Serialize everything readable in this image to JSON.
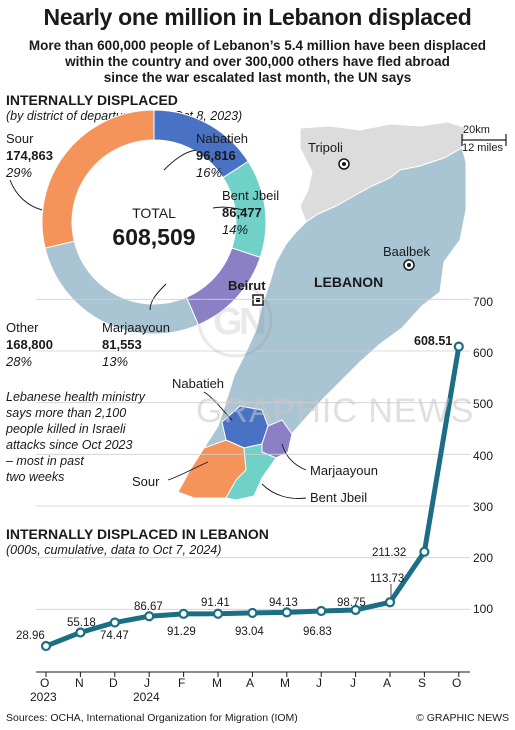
{
  "title": "Nearly one million in Lebanon displaced",
  "subtitle_lines": [
    "More than 600,000 people of Lebanon’s 5.4 million have been displaced",
    "within the country and over 300,000 others have fled abroad",
    "since the war escalated last month, the UN says"
  ],
  "donut": {
    "heading": "INTERNALLY DISPLACED",
    "note": "(by district of departure, since Oct 8, 2023)",
    "total_label": "TOTAL",
    "total_value": "608,509",
    "slices": [
      {
        "name": "Nabatieh",
        "value": "96,816",
        "pct": "16%",
        "num": 96816,
        "color": "#4a72c4"
      },
      {
        "name": "Bent Jbeil",
        "value": "86,477",
        "pct": "14%",
        "num": 86477,
        "color": "#6fd1c8"
      },
      {
        "name": "Marjaayoun",
        "value": "81,553",
        "pct": "13%",
        "num": 81553,
        "color": "#8b80c6"
      },
      {
        "name": "Other",
        "value": "168,800",
        "pct": "28%",
        "num": 168800,
        "color": "#a9c4d3"
      },
      {
        "name": "Sour",
        "value": "174,863",
        "pct": "29%",
        "num": 174863,
        "color": "#f4935a"
      }
    ]
  },
  "map": {
    "scale_km": "20km",
    "scale_miles": "12 miles",
    "places": {
      "tripoli": "Tripoli",
      "baalbek": "Baalbek",
      "beirut": "Beirut",
      "country": "LEBANON"
    },
    "districts": {
      "nabatieh": "Nabatieh",
      "marjaayoun": "Marjaayoun",
      "sour": "Sour",
      "bentjbeil": "Bent Jbeil"
    },
    "note_lines": [
      "Lebanese health ministry",
      "says more than 2,100",
      "people killed in Israeli",
      "attacks  since Oct 2023",
      "– most in past",
      "two weeks"
    ],
    "colors": {
      "north": "#dcdcdc",
      "south": "#a9c4d3"
    }
  },
  "line": {
    "heading": "INTERNALLY DISPLACED IN LEBANON",
    "note": "(000s, cumulative, data to Oct 7, 2024)",
    "month_labels": [
      "O",
      "N",
      "D",
      "J",
      "F",
      "M",
      "A",
      "M",
      "J",
      "J",
      "A",
      "S",
      "O"
    ],
    "year_labels": [
      "2023",
      "2024"
    ],
    "y_ticks": [
      "100",
      "200",
      "300",
      "400",
      "500",
      "600",
      "700"
    ],
    "highlight_label": "608.51",
    "value_labels": [
      "28.96",
      "55.18",
      "74.47",
      "86.67",
      "91.29",
      "91.41",
      "93.04",
      "94.13",
      "96.83",
      "98.75",
      "113.73",
      "211.32"
    ]
  },
  "chart_data": {
    "type": "line",
    "title": "INTERNALLY DISPLACED IN LEBANON",
    "subtitle": "(000s, cumulative, data to Oct 7, 2024)",
    "categories": [
      "Oct 2023",
      "Nov 2023",
      "Dec 2023",
      "Jan 2024",
      "Feb 2024",
      "Mar 2024",
      "Apr 2024",
      "May 2024",
      "Jun 2024",
      "Jul 2024",
      "Aug 2024",
      "Sep 2024",
      "Oct 2024"
    ],
    "values": [
      28.96,
      55.18,
      74.47,
      86.67,
      91.29,
      91.41,
      93.04,
      94.13,
      96.83,
      98.75,
      113.73,
      211.32,
      608.51
    ],
    "ylim": [
      0,
      700
    ],
    "color": "#1c6e84",
    "grid": true
  },
  "footer": {
    "sources": "Sources: OCHA, International Organization for Migration (IOM)",
    "credit": "© GRAPHIC NEWS"
  },
  "watermark": "GRAPHIC NEWS"
}
